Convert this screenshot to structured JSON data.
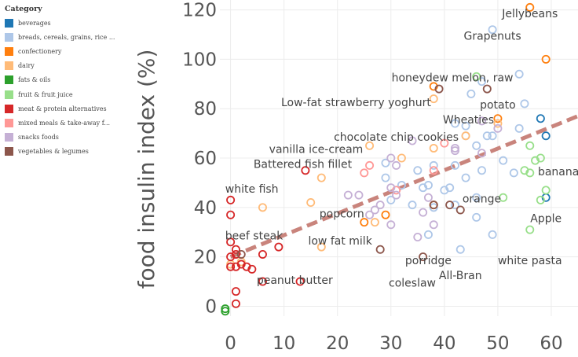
{
  "legend": {
    "title": "Category",
    "items": [
      {
        "label": "beverages",
        "color": "#1f77b4"
      },
      {
        "label": "breads, cereals, grains, rice ...",
        "color": "#aec7e8"
      },
      {
        "label": "confectionery",
        "color": "#ff7f0e"
      },
      {
        "label": "dairy",
        "color": "#ffbb78"
      },
      {
        "label": "fats & oils",
        "color": "#2ca02c"
      },
      {
        "label": "fruit & fruit juice",
        "color": "#98df8a"
      },
      {
        "label": "meat & protein alternatives",
        "color": "#d62728"
      },
      {
        "label": "mixed meals & take-away f...",
        "color": "#ff9896"
      },
      {
        "label": "snacks foods",
        "color": "#c5b0d5"
      },
      {
        "label": "vegetables & legumes",
        "color": "#8c564b"
      }
    ]
  },
  "chart_data": {
    "type": "scatter",
    "ylabel": "food insulin index (%)",
    "xlabel": "",
    "xlim": [
      -2,
      65
    ],
    "ylim": [
      -4,
      124
    ],
    "xticks": [
      0,
      10,
      20,
      30,
      40,
      50,
      60
    ],
    "yticks": [
      0,
      20,
      40,
      60,
      80,
      100,
      120
    ],
    "trendline": {
      "x": [
        0,
        65
      ],
      "y": [
        20,
        77
      ],
      "color": "#c9847c"
    },
    "series": [
      {
        "name": "beverages",
        "points": [
          [
            58,
            76
          ],
          [
            59,
            69
          ],
          [
            59,
            44
          ]
        ]
      },
      {
        "name": "breads, cereals, grains, rice ...",
        "points": [
          [
            49,
            112
          ],
          [
            54,
            94
          ],
          [
            47,
            91
          ],
          [
            45,
            86
          ],
          [
            55,
            82
          ],
          [
            42,
            74
          ],
          [
            44,
            73
          ],
          [
            44,
            69
          ],
          [
            48,
            69
          ],
          [
            49,
            69
          ],
          [
            54,
            72
          ],
          [
            46,
            65
          ],
          [
            38,
            57
          ],
          [
            29,
            58
          ],
          [
            35,
            55
          ],
          [
            42,
            57
          ],
          [
            36,
            48
          ],
          [
            37,
            49
          ],
          [
            51,
            59
          ],
          [
            47,
            55
          ],
          [
            53,
            54
          ],
          [
            44,
            52
          ],
          [
            40,
            47
          ],
          [
            30,
            43
          ],
          [
            34,
            41
          ],
          [
            42,
            41
          ],
          [
            38,
            40
          ],
          [
            46,
            36
          ],
          [
            37,
            29
          ],
          [
            49,
            29
          ],
          [
            43,
            23
          ],
          [
            46,
            44
          ],
          [
            41,
            48
          ],
          [
            32,
            49
          ],
          [
            29,
            52
          ]
        ]
      },
      {
        "name": "confectionery",
        "points": [
          [
            56,
            121
          ],
          [
            59,
            100
          ],
          [
            38,
            89
          ],
          [
            50,
            76
          ],
          [
            25,
            34
          ],
          [
            29,
            37
          ],
          [
            38,
            41
          ]
        ]
      },
      {
        "name": "dairy",
        "points": [
          [
            38,
            84
          ],
          [
            26,
            65
          ],
          [
            38,
            64
          ],
          [
            44,
            69
          ],
          [
            50,
            74
          ],
          [
            17,
            52
          ],
          [
            32,
            60
          ],
          [
            27,
            34
          ],
          [
            15,
            42
          ],
          [
            6,
            40
          ],
          [
            17,
            24
          ],
          [
            2,
            18
          ],
          [
            0,
            17
          ]
        ]
      },
      {
        "name": "fats & oils",
        "points": [
          [
            -1,
            -1
          ],
          [
            -1,
            -2
          ]
        ]
      },
      {
        "name": "fruit & fruit juice",
        "points": [
          [
            46,
            93
          ],
          [
            57,
            59
          ],
          [
            56,
            65
          ],
          [
            58,
            60
          ],
          [
            55,
            55
          ],
          [
            56,
            54
          ],
          [
            59,
            47
          ],
          [
            58,
            43
          ],
          [
            51,
            44
          ],
          [
            56,
            31
          ]
        ]
      },
      {
        "name": "meat & protein alternatives",
        "points": [
          [
            0,
            43
          ],
          [
            0,
            37
          ],
          [
            0,
            26
          ],
          [
            1,
            23
          ],
          [
            0,
            20
          ],
          [
            1,
            21
          ],
          [
            2,
            17
          ],
          [
            0,
            16
          ],
          [
            1,
            16
          ],
          [
            3,
            16
          ],
          [
            4,
            15
          ],
          [
            6,
            21
          ],
          [
            9,
            24
          ],
          [
            6,
            10
          ],
          [
            13,
            10
          ],
          [
            1,
            6
          ],
          [
            1,
            1
          ],
          [
            14,
            55
          ]
        ]
      },
      {
        "name": "mixed meals & take-away f...",
        "points": [
          [
            26,
            57
          ],
          [
            38,
            55
          ],
          [
            40,
            66
          ],
          [
            31,
            47
          ],
          [
            25,
            54
          ]
        ]
      },
      {
        "name": "snacks foods",
        "points": [
          [
            34,
            67
          ],
          [
            30,
            60
          ],
          [
            31,
            57
          ],
          [
            22,
            45
          ],
          [
            24,
            45
          ],
          [
            30,
            48
          ],
          [
            31,
            45
          ],
          [
            27,
            39
          ],
          [
            26,
            37
          ],
          [
            28,
            41
          ],
          [
            30,
            33
          ],
          [
            37,
            44
          ],
          [
            36,
            38
          ],
          [
            35,
            28
          ],
          [
            38,
            33
          ],
          [
            42,
            63
          ],
          [
            47,
            62
          ],
          [
            50,
            72
          ],
          [
            42,
            64
          ],
          [
            47,
            75
          ]
        ]
      },
      {
        "name": "vegetables & legumes",
        "points": [
          [
            39,
            88
          ],
          [
            48,
            88
          ],
          [
            38,
            41
          ],
          [
            41,
            41
          ],
          [
            43,
            39
          ],
          [
            28,
            23
          ],
          [
            36,
            20
          ],
          [
            2,
            21
          ]
        ]
      }
    ],
    "annotations": [
      {
        "text": "Jellybeans",
        "x": 56,
        "y": 117,
        "anchor": "middle"
      },
      {
        "text": "Grapenuts",
        "x": 49,
        "y": 108,
        "anchor": "middle"
      },
      {
        "text": "honeydew melon, raw",
        "x": 41.5,
        "y": 91,
        "anchor": "middle"
      },
      {
        "text": "Low-fat strawberry yoghurt",
        "x": 37.5,
        "y": 81,
        "anchor": "end"
      },
      {
        "text": "potato",
        "x": 50,
        "y": 80,
        "anchor": "middle"
      },
      {
        "text": "Wheaties",
        "x": 44.5,
        "y": 74,
        "anchor": "middle"
      },
      {
        "text": "chocolate chip cookies",
        "x": 31,
        "y": 67,
        "anchor": "middle"
      },
      {
        "text": "vanilla ice-cream",
        "x": 16,
        "y": 62,
        "anchor": "middle"
      },
      {
        "text": "Battered fish fillet",
        "x": 13.5,
        "y": 56,
        "anchor": "middle"
      },
      {
        "text": "banana",
        "x": 57.5,
        "y": 53,
        "anchor": "start"
      },
      {
        "text": "white fish",
        "x": -1,
        "y": 46,
        "anchor": "start"
      },
      {
        "text": "orange",
        "x": 47,
        "y": 42,
        "anchor": "middle"
      },
      {
        "text": "popcorn",
        "x": 25,
        "y": 36,
        "anchor": "end"
      },
      {
        "text": "Apple",
        "x": 59,
        "y": 34,
        "anchor": "middle"
      },
      {
        "text": "beef steak",
        "x": -1,
        "y": 27,
        "anchor": "start"
      },
      {
        "text": "low fat milk",
        "x": 20.5,
        "y": 25,
        "anchor": "middle"
      },
      {
        "text": "porridge",
        "x": 37,
        "y": 17,
        "anchor": "middle"
      },
      {
        "text": "white pasta",
        "x": 56,
        "y": 17,
        "anchor": "middle"
      },
      {
        "text": "All-Bran",
        "x": 43,
        "y": 11,
        "anchor": "middle"
      },
      {
        "text": "peanut butter",
        "x": 12,
        "y": 9,
        "anchor": "middle"
      },
      {
        "text": "coleslaw",
        "x": 34,
        "y": 8,
        "anchor": "middle"
      }
    ]
  }
}
